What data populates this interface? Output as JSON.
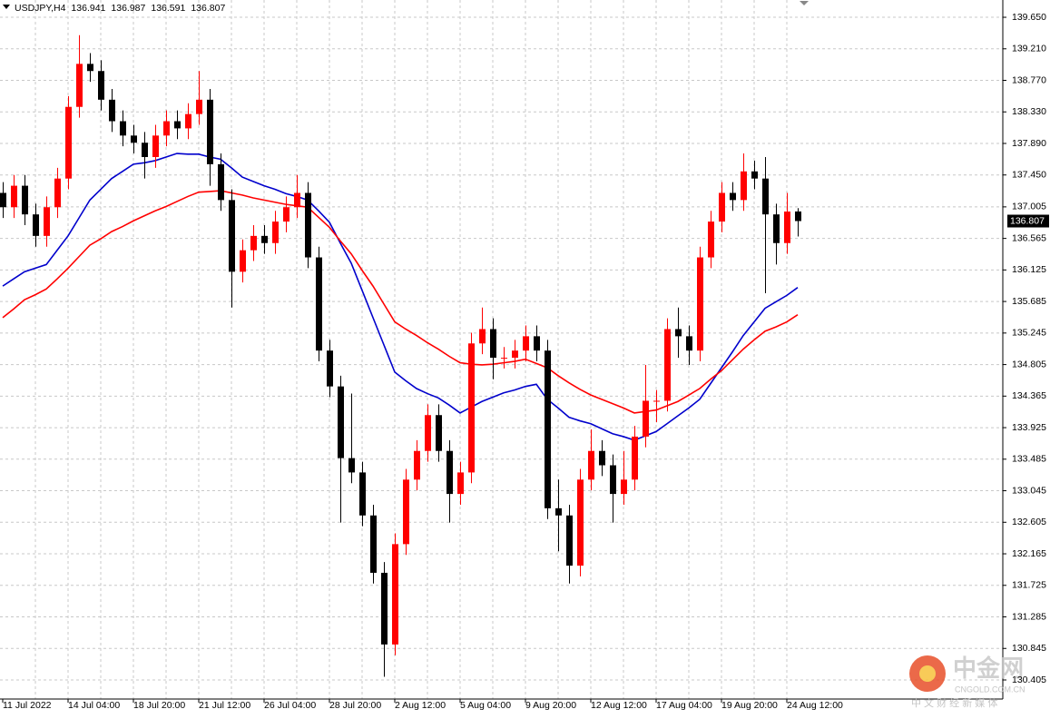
{
  "chart_data": {
    "type": "candlestick",
    "symbol": "USDJPY,H4",
    "categories": [
      "11 Jul 2022",
      null,
      null,
      null,
      null,
      null,
      "14 Jul 04:00",
      null,
      null,
      null,
      null,
      null,
      "18 Jul 20:00",
      null,
      null,
      null,
      null,
      null,
      "21 Jul 12:00",
      null,
      null,
      null,
      null,
      null,
      "26 Jul 04:00",
      null,
      null,
      null,
      null,
      null,
      "28 Jul 20:00",
      null,
      null,
      null,
      null,
      null,
      "2 Aug 12:00",
      null,
      null,
      null,
      null,
      null,
      "5 Aug 04:00",
      null,
      null,
      null,
      null,
      null,
      "9 Aug 20:00",
      null,
      null,
      null,
      null,
      null,
      "12 Aug 12:00",
      null,
      null,
      null,
      null,
      null,
      "17 Aug 04:00",
      null,
      null,
      null,
      null,
      null,
      "19 Aug 20:00",
      null,
      null,
      null,
      null,
      null,
      "24 Aug 12:00",
      null
    ],
    "open": [
      137.2,
      137.0,
      137.3,
      136.9,
      136.6,
      137.0,
      137.4,
      138.4,
      139.0,
      138.9,
      138.5,
      138.2,
      138.0,
      137.9,
      137.7,
      138.0,
      138.2,
      138.1,
      138.3,
      138.5,
      137.6,
      137.1,
      136.1,
      136.4,
      136.6,
      136.5,
      136.8,
      137.0,
      137.2,
      136.3,
      135.0,
      134.5,
      133.5,
      133.3,
      132.7,
      131.9,
      130.9,
      132.3,
      133.2,
      133.6,
      134.1,
      133.6,
      133.0,
      133.3,
      135.1,
      135.3,
      134.9,
      134.9,
      135.0,
      135.2,
      135.0,
      132.8,
      132.7,
      132.0,
      133.2,
      133.6,
      133.4,
      133.0,
      133.2,
      133.8,
      134.3,
      134.3,
      135.3,
      135.2,
      135.0,
      136.3,
      136.8,
      137.2,
      137.1,
      137.5,
      137.4,
      136.9,
      136.5,
      136.941
    ],
    "high": [
      137.35,
      137.45,
      137.45,
      137.05,
      137.15,
      137.55,
      138.55,
      139.4,
      139.15,
      139.05,
      138.65,
      138.35,
      138.15,
      138.05,
      138.15,
      138.35,
      138.35,
      138.45,
      138.9,
      138.65,
      137.75,
      137.25,
      136.55,
      136.75,
      136.75,
      136.95,
      137.15,
      137.45,
      137.35,
      136.45,
      135.15,
      134.65,
      134.4,
      133.45,
      132.85,
      132.05,
      132.45,
      133.35,
      133.75,
      134.25,
      134.25,
      133.75,
      133.45,
      135.25,
      135.6,
      135.45,
      135.05,
      135.15,
      135.35,
      135.35,
      135.15,
      133.2,
      132.85,
      133.35,
      133.9,
      133.75,
      133.55,
      133.6,
      133.95,
      134.8,
      134.45,
      135.45,
      135.6,
      135.35,
      136.45,
      136.95,
      137.35,
      137.35,
      137.75,
      137.65,
      137.7,
      137.05,
      137.2,
      136.987
    ],
    "low": [
      136.85,
      136.85,
      136.75,
      136.45,
      136.45,
      136.85,
      137.25,
      138.25,
      138.75,
      138.35,
      138.05,
      137.85,
      137.75,
      137.4,
      137.55,
      137.85,
      137.95,
      137.95,
      138.15,
      137.3,
      136.95,
      135.6,
      135.95,
      136.25,
      136.35,
      136.35,
      136.65,
      136.85,
      136.15,
      134.85,
      134.35,
      132.6,
      133.15,
      132.55,
      131.75,
      130.45,
      130.75,
      132.15,
      133.05,
      133.45,
      133.45,
      132.6,
      132.85,
      133.15,
      134.95,
      134.6,
      134.75,
      134.75,
      134.85,
      134.85,
      132.65,
      132.2,
      131.75,
      131.85,
      133.05,
      133.25,
      132.6,
      132.85,
      133.05,
      133.65,
      134.0,
      134.15,
      134.9,
      134.8,
      134.85,
      136.15,
      136.65,
      136.95,
      136.95,
      137.25,
      135.8,
      136.2,
      136.35,
      136.591
    ],
    "close": [
      137.0,
      137.3,
      136.9,
      136.6,
      137.0,
      137.4,
      138.4,
      139.0,
      138.9,
      138.5,
      138.2,
      138.0,
      137.9,
      137.7,
      138.0,
      138.2,
      138.1,
      138.3,
      138.5,
      137.6,
      137.1,
      136.1,
      136.4,
      136.6,
      136.5,
      136.8,
      137.0,
      137.2,
      136.3,
      135.0,
      134.5,
      133.5,
      133.3,
      132.7,
      131.9,
      130.9,
      132.3,
      133.2,
      133.6,
      134.1,
      133.6,
      133.0,
      133.3,
      135.1,
      135.3,
      134.9,
      134.9,
      135.0,
      135.2,
      135.0,
      132.8,
      132.7,
      132.0,
      133.2,
      133.6,
      133.4,
      133.0,
      133.2,
      133.8,
      134.3,
      134.3,
      135.3,
      135.2,
      135.0,
      136.3,
      136.8,
      137.2,
      137.1,
      137.5,
      137.4,
      136.9,
      136.5,
      136.94,
      136.807
    ],
    "up_color": "#ff0000",
    "down_color": "#000000",
    "lines": [
      {
        "color": "#0000cc",
        "values": [
          135.9,
          136.0,
          136.1,
          136.15,
          136.2,
          136.4,
          136.6,
          136.85,
          137.1,
          137.25,
          137.4,
          137.5,
          137.6,
          137.62,
          137.65,
          137.7,
          137.75,
          137.74,
          137.74,
          137.7,
          137.67,
          137.55,
          137.42,
          137.36,
          137.3,
          137.25,
          137.19,
          137.15,
          137.1,
          136.95,
          136.79,
          136.5,
          136.22,
          135.84,
          135.46,
          135.08,
          134.7,
          134.58,
          134.47,
          134.4,
          134.34,
          134.24,
          134.13,
          134.21,
          134.29,
          134.35,
          134.41,
          134.45,
          134.5,
          134.53,
          134.32,
          134.2,
          134.07,
          134.02,
          133.98,
          133.91,
          133.84,
          133.8,
          133.75,
          133.81,
          133.87,
          133.98,
          134.09,
          134.2,
          134.32,
          134.54,
          134.76,
          134.98,
          135.21,
          135.4,
          135.59,
          135.68,
          135.77,
          135.88
        ]
      },
      {
        "color": "#ff0000",
        "values": [
          135.46,
          135.58,
          135.71,
          135.78,
          135.86,
          136.0,
          136.15,
          136.31,
          136.47,
          136.56,
          136.66,
          136.73,
          136.81,
          136.88,
          136.95,
          137.01,
          137.08,
          137.15,
          137.21,
          137.22,
          137.23,
          137.2,
          137.17,
          137.13,
          137.1,
          137.07,
          137.04,
          137.02,
          137.0,
          136.86,
          136.72,
          136.53,
          136.35,
          136.12,
          135.9,
          135.65,
          135.4,
          135.3,
          135.21,
          135.11,
          135.02,
          134.92,
          134.83,
          134.81,
          134.8,
          134.81,
          134.83,
          134.85,
          134.88,
          134.82,
          134.76,
          134.65,
          134.55,
          134.46,
          134.38,
          134.32,
          134.26,
          134.2,
          134.13,
          134.15,
          134.17,
          134.23,
          134.29,
          134.38,
          134.47,
          134.6,
          134.72,
          134.87,
          135.02,
          135.15,
          135.27,
          135.33,
          135.4,
          135.5
        ]
      }
    ],
    "ylim": [
      130.139,
      139.891
    ],
    "yticks": [
      {
        "value": 139.65,
        "label": "139.650"
      },
      {
        "value": 139.21,
        "label": "139.210"
      },
      {
        "value": 138.77,
        "label": "138.770"
      },
      {
        "value": 138.33,
        "label": "138.330"
      },
      {
        "value": 137.89,
        "label": "137.890"
      },
      {
        "value": 137.45,
        "label": "137.450"
      },
      137.005,
      136.565,
      136.125,
      135.685,
      135.245,
      134.805,
      134.365,
      133.925,
      133.485,
      133.045,
      132.605,
      132.165,
      131.725,
      131.285,
      130.845,
      130.405
    ],
    "grid": true
  },
  "watermark": {
    "brand": "中金网",
    "site": "CNGOLD.COM.CN",
    "slogan": "中 文 财 经 新 媒 体"
  }
}
